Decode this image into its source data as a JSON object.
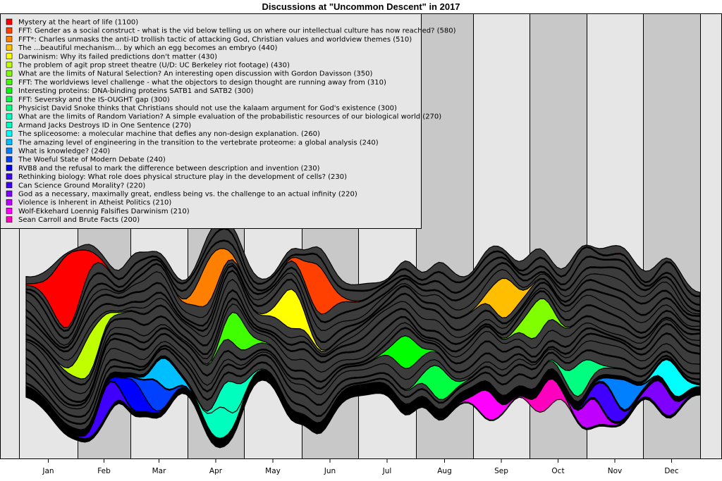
{
  "chart_data": {
    "type": "area",
    "subtype": "streamgraph",
    "title": "Discussions at \"Uncommon Descent\" in 2017",
    "xlabel": "",
    "ylabel": "",
    "x_ticks": [
      "Jan",
      "Feb",
      "Mar",
      "Apr",
      "May",
      "Jun",
      "Jul",
      "Aug",
      "Sep",
      "Oct",
      "Nov",
      "Dec"
    ],
    "background_colors": {
      "light": "#e6e6e6",
      "dark": "#c8c8c8",
      "other_series": "#3c3c3c"
    },
    "legend_position": "top-left",
    "series": [
      {
        "name": "Mystery at the heart of life",
        "total": 1100,
        "color": "#ff0000",
        "peak_month": 1.4
      },
      {
        "name": "FFT: Gender as a social construct - what is the vid below telling us on where our intellectual culture has now reached?",
        "total": 580,
        "color": "#ff4000",
        "peak_month": 6.0
      },
      {
        "name": "FFT*: Charles unmasks the anti-ID trollish tactic of attacking God, Christian values and worldview themes",
        "total": 510,
        "color": "#ff8000",
        "peak_month": 4.0
      },
      {
        "name": "The ...beautiful mechanism... by which an egg becomes an embryo",
        "total": 440,
        "color": "#ffbf00",
        "peak_month": 9.4
      },
      {
        "name": "Darwinism: Why its failed predictions don't matter",
        "total": 430,
        "color": "#ffff00",
        "peak_month": 5.5
      },
      {
        "name": "The problem of agit prop street theatre (U/D: UC Berkeley riot footage)",
        "total": 430,
        "color": "#bfff00",
        "peak_month": 1.8
      },
      {
        "name": "What are the limits of Natural Selection? An interesting open discussion with Gordon Davisson",
        "total": 350,
        "color": "#80ff00",
        "peak_month": 10.0
      },
      {
        "name": "FFT: The worldviews level challenge - what the objectors to design thought are running away from",
        "total": 310,
        "color": "#40ff00",
        "peak_month": 4.5
      },
      {
        "name": "Interesting proteins: DNA-binding proteins SATB1 and SATB2",
        "total": 300,
        "color": "#00ff00",
        "peak_month": 7.6
      },
      {
        "name": "FFT: Seversky and the IS-OUGHT gap",
        "total": 300,
        "color": "#00ff40",
        "peak_month": 8.2
      },
      {
        "name": "Physicist David Snoke thinks that Christians should not use the kalaam argument for God's existence",
        "total": 300,
        "color": "#00ff80",
        "peak_month": 10.8
      },
      {
        "name": "What are the limits of Random Variation? A simple evaluation of the probabilistic resources of our biological world",
        "total": 270,
        "color": "#00ffbf",
        "peak_month": 4.4
      },
      {
        "name": "Armand Jacks Destroys ID in One Sentence",
        "total": 270,
        "color": "#00ffbf",
        "peak_month": 4.2
      },
      {
        "name": "The spliceosome: a molecular machine that defies any non-design explanation.",
        "total": 260,
        "color": "#00ffff",
        "peak_month": 12.5
      },
      {
        "name": "The amazing level of engineering in the transition to the vertebrate proteome: a global analysis",
        "total": 240,
        "color": "#00bfff",
        "peak_month": 3.2
      },
      {
        "name": "What is knowledge?",
        "total": 240,
        "color": "#0080ff",
        "peak_month": 11.6
      },
      {
        "name": "The Woeful State of Modern Debate",
        "total": 240,
        "color": "#0040ff",
        "peak_month": 3.0
      },
      {
        "name": "RVB8 and the refusal to mark the difference between description and invention",
        "total": 230,
        "color": "#0000ff",
        "peak_month": 2.6
      },
      {
        "name": "Rethinking biology: What role does physical structure play in the development of cells?",
        "total": 230,
        "color": "#4000ff",
        "peak_month": 11.3
      },
      {
        "name": "Can Science Ground Morality?",
        "total": 220,
        "color": "#4000ff",
        "peak_month": 2.1
      },
      {
        "name": "God as a necessary, maximally great, endless being vs. the challenge to an actual infinity",
        "total": 220,
        "color": "#8000ff",
        "peak_month": 12.3
      },
      {
        "name": "Violence is Inherent in Atheist Politics",
        "total": 210,
        "color": "#bf00ff",
        "peak_month": 11.0
      },
      {
        "name": "Wolf-Ekkehard Loennig Falsifies Darwinism",
        "total": 210,
        "color": "#ff00ff",
        "peak_month": 9.1
      },
      {
        "name": "Sean Carroll and Brute Facts",
        "total": 200,
        "color": "#ff00bf",
        "peak_month": 10.2
      }
    ],
    "legend_entries": [
      "Mystery at the heart of life (1100)",
      "FFT: Gender as a social construct - what is the vid below telling us on where our intellectual culture has now reached? (580)",
      "FFT*: Charles unmasks the anti-ID trollish tactic of attacking God, Christian values and worldview themes (510)",
      "The ...beautiful mechanism... by which an egg becomes an embryo (440)",
      "Darwinism: Why its failed predictions don't matter (430)",
      "The problem of agit prop street theatre (U/D: UC Berkeley riot footage) (430)",
      "What are the limits of Natural Selection? An interesting open discussion with Gordon Davisson (350)",
      "FFT: The worldviews level challenge - what the objectors to design thought are running away from (310)",
      "Interesting proteins: DNA-binding proteins SATB1 and SATB2 (300)",
      "FFT: Seversky and the IS-OUGHT gap (300)",
      "Physicist David Snoke thinks that Christians should not use the kalaam argument for God's existence (300)",
      "What are the limits of Random Variation? A simple evaluation of the probabilistic resources of our biological world (270)",
      "Armand Jacks Destroys ID in One Sentence (270)",
      "The spliceosome: a molecular machine that defies any non-design explanation. (260)",
      "The amazing level of engineering in the transition to the vertebrate proteome: a global analysis (240)",
      "What is knowledge? (240)",
      "The Woeful State of Modern Debate (240)",
      "RVB8 and the refusal to mark the difference between description and invention (230)",
      "Rethinking biology: What role does physical structure play in the development of cells? (230)",
      "Can Science Ground Morality? (220)",
      "God as a necessary, maximally great, endless being vs. the challenge to an actual infinity (220)",
      "Violence is Inherent in Atheist Politics (210)",
      "Wolf-Ekkehard Loennig Falsifies Darwinism (210)",
      "Sean Carroll and Brute Facts (200)"
    ]
  }
}
